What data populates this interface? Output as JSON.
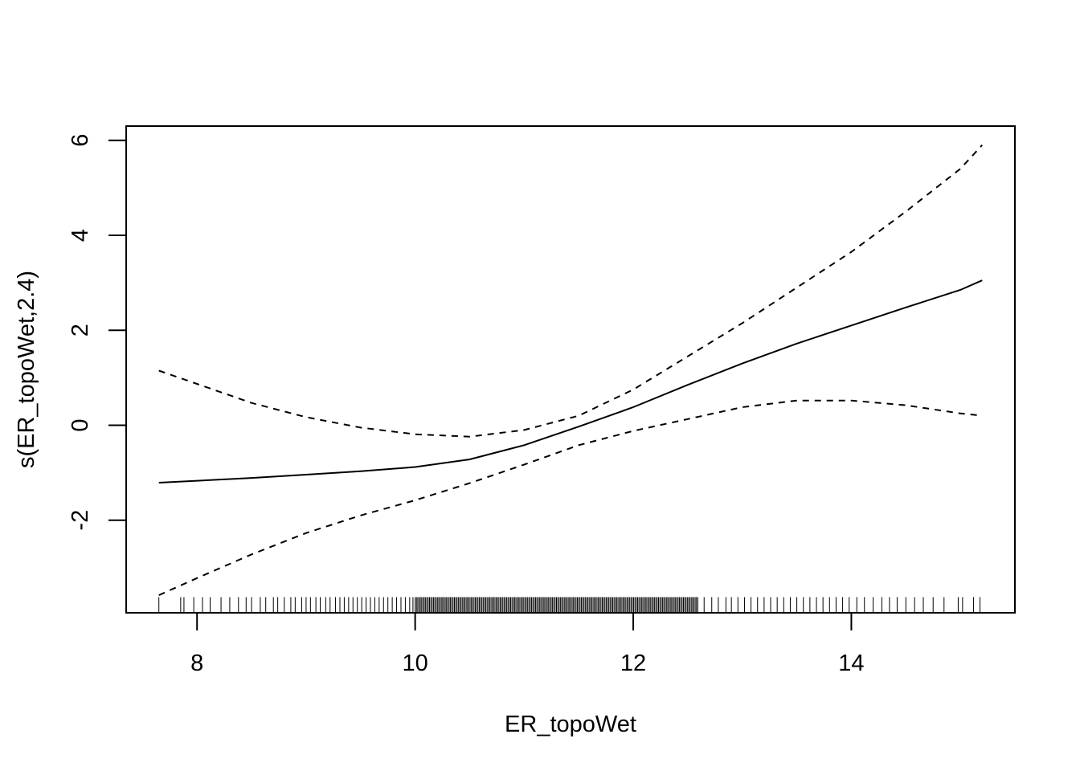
{
  "chart_data": {
    "type": "line",
    "title": "",
    "xlabel": "ER_topoWet",
    "ylabel": "s(ER_topoWet,2.4)",
    "xlim": [
      7.35,
      15.5
    ],
    "ylim": [
      -3.95,
      6.3
    ],
    "x_ticks": [
      "8",
      "10",
      "12",
      "14"
    ],
    "x_tick_values": [
      8,
      10,
      12,
      14
    ],
    "y_ticks": [
      "-2",
      "0",
      "2",
      "4",
      "6"
    ],
    "y_tick_values": [
      -2,
      0,
      2,
      4,
      6
    ],
    "grid": false,
    "legend": "none",
    "series": [
      {
        "style": "solid",
        "x": [
          7.65,
          8.0,
          8.5,
          9.0,
          9.5,
          10.0,
          10.5,
          11.0,
          11.5,
          12.0,
          12.5,
          13.0,
          13.5,
          14.0,
          14.5,
          15.0,
          15.2
        ],
        "y": [
          -1.21,
          -1.17,
          -1.11,
          -1.04,
          -0.97,
          -0.88,
          -0.72,
          -0.42,
          -0.03,
          0.38,
          0.85,
          1.3,
          1.72,
          2.1,
          2.48,
          2.85,
          3.05
        ]
      },
      {
        "style": "dashed",
        "x": [
          7.65,
          8.0,
          8.5,
          9.0,
          9.5,
          10.0,
          10.5,
          11.0,
          11.5,
          12.0,
          12.5,
          13.0,
          13.5,
          14.0,
          14.5,
          15.0,
          15.2
        ],
        "y": [
          1.15,
          0.87,
          0.47,
          0.17,
          -0.05,
          -0.19,
          -0.24,
          -0.1,
          0.2,
          0.75,
          1.45,
          2.15,
          2.9,
          3.65,
          4.5,
          5.4,
          5.9
        ]
      },
      {
        "style": "dashed",
        "x": [
          7.65,
          8.0,
          8.5,
          9.0,
          9.5,
          10.0,
          10.5,
          11.0,
          11.5,
          12.0,
          12.5,
          13.0,
          13.5,
          14.0,
          14.5,
          15.0,
          15.2
        ],
        "y": [
          -3.58,
          -3.22,
          -2.72,
          -2.27,
          -1.9,
          -1.58,
          -1.22,
          -0.83,
          -0.42,
          -0.12,
          0.13,
          0.38,
          0.52,
          0.52,
          0.42,
          0.25,
          0.2
        ]
      }
    ],
    "rug": {
      "y_from": -3.95,
      "y_to": -3.62,
      "dense_range": [
        10.0,
        12.6
      ],
      "sparse_left": [
        7.65,
        7.85,
        7.88,
        7.97,
        8.05,
        8.12,
        8.22,
        8.3,
        8.38,
        8.45,
        8.5,
        8.58,
        8.63,
        8.7,
        8.74,
        8.8,
        8.86,
        8.9,
        8.96,
        9.0,
        9.04,
        9.09,
        9.13,
        9.18,
        9.22,
        9.27,
        9.31,
        9.35,
        9.39,
        9.43,
        9.47,
        9.51,
        9.55,
        9.59,
        9.63,
        9.67,
        9.71,
        9.75,
        9.79,
        9.83,
        9.87,
        9.91,
        9.95,
        9.98
      ],
      "sparse_right": [
        12.65,
        12.72,
        12.78,
        12.85,
        12.9,
        12.96,
        13.02,
        13.08,
        13.14,
        13.2,
        13.26,
        13.32,
        13.38,
        13.44,
        13.5,
        13.56,
        13.62,
        13.68,
        13.74,
        13.8,
        13.86,
        13.92,
        13.98,
        14.05,
        14.12,
        14.2,
        14.28,
        14.35,
        14.42,
        14.5,
        14.58,
        14.66,
        14.75,
        14.85,
        14.98,
        15.02,
        15.12,
        15.18
      ]
    }
  }
}
